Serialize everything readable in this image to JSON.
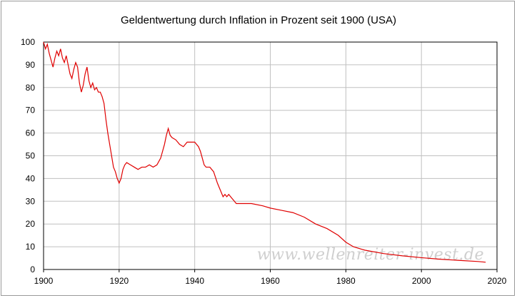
{
  "chart_data": {
    "type": "line",
    "title": "Geldentwertung durch Inflation in Prozent seit 1900 (USA)",
    "xlabel": "",
    "ylabel": "",
    "xlim": [
      1900,
      2020
    ],
    "ylim": [
      0,
      100
    ],
    "x_ticks": [
      "1900",
      "1920",
      "1940",
      "1960",
      "1980",
      "2000",
      "2020"
    ],
    "y_ticks": [
      "0",
      "10",
      "20",
      "30",
      "40",
      "50",
      "60",
      "70",
      "80",
      "90",
      "100"
    ],
    "grid": true,
    "legend": "none",
    "line_color": "#e00000",
    "watermark": "www.wellenreiter-invest.de",
    "series": [
      {
        "x": [
          1900,
          1900.5,
          1901,
          1901.5,
          1902,
          1902.5,
          1903,
          1903.5,
          1904,
          1904.5,
          1905,
          1905.5,
          1906,
          1906.5,
          1907,
          1907.5,
          1908,
          1908.5,
          1909,
          1909.5,
          1910,
          1910.5,
          1911,
          1911.5,
          1912,
          1912.5,
          1913,
          1913.5,
          1914,
          1914.5,
          1915,
          1915.5,
          1916,
          1916.5,
          1917,
          1917.5,
          1918,
          1918.5,
          1919,
          1919.5,
          1920,
          1920.5,
          1921,
          1921.5,
          1922,
          1923,
          1924,
          1925,
          1926,
          1927,
          1928,
          1929,
          1930,
          1931,
          1932,
          1932.5,
          1933,
          1933.5,
          1934,
          1935,
          1936,
          1937,
          1937.5,
          1938,
          1939,
          1940,
          1941,
          1941.5,
          1942,
          1942.5,
          1943,
          1944,
          1945,
          1946,
          1946.5,
          1947,
          1947.5,
          1948,
          1948.5,
          1949,
          1950,
          1950.5,
          1951,
          1952,
          1953,
          1955,
          1958,
          1960,
          1963,
          1966,
          1969,
          1972,
          1975,
          1978,
          1980,
          1982,
          1985,
          1990,
          1995,
          2000,
          2005,
          2010,
          2015,
          2017
        ],
        "values": [
          100,
          97,
          99,
          95,
          92,
          89,
          93,
          96,
          94,
          97,
          93,
          91,
          94,
          90,
          86,
          84,
          88,
          91,
          89,
          82,
          78,
          81,
          86,
          89,
          83,
          80,
          82,
          79,
          80,
          78,
          78,
          76,
          73,
          66,
          60,
          55,
          50,
          45,
          43,
          40,
          38,
          40,
          44,
          46,
          47,
          46,
          45,
          44,
          45,
          45,
          46,
          45,
          46,
          49,
          55,
          59,
          62,
          59,
          58,
          57,
          55,
          54,
          55,
          56,
          56,
          56,
          54,
          52,
          49,
          46,
          45,
          45,
          43,
          38,
          36,
          34,
          32,
          33,
          32,
          33,
          31,
          30,
          29,
          29,
          29,
          29,
          28,
          27,
          26,
          25,
          23,
          20,
          18,
          15,
          12,
          10,
          8.5,
          7,
          6,
          5.2,
          4.5,
          4,
          3.5,
          3.2
        ]
      }
    ]
  }
}
